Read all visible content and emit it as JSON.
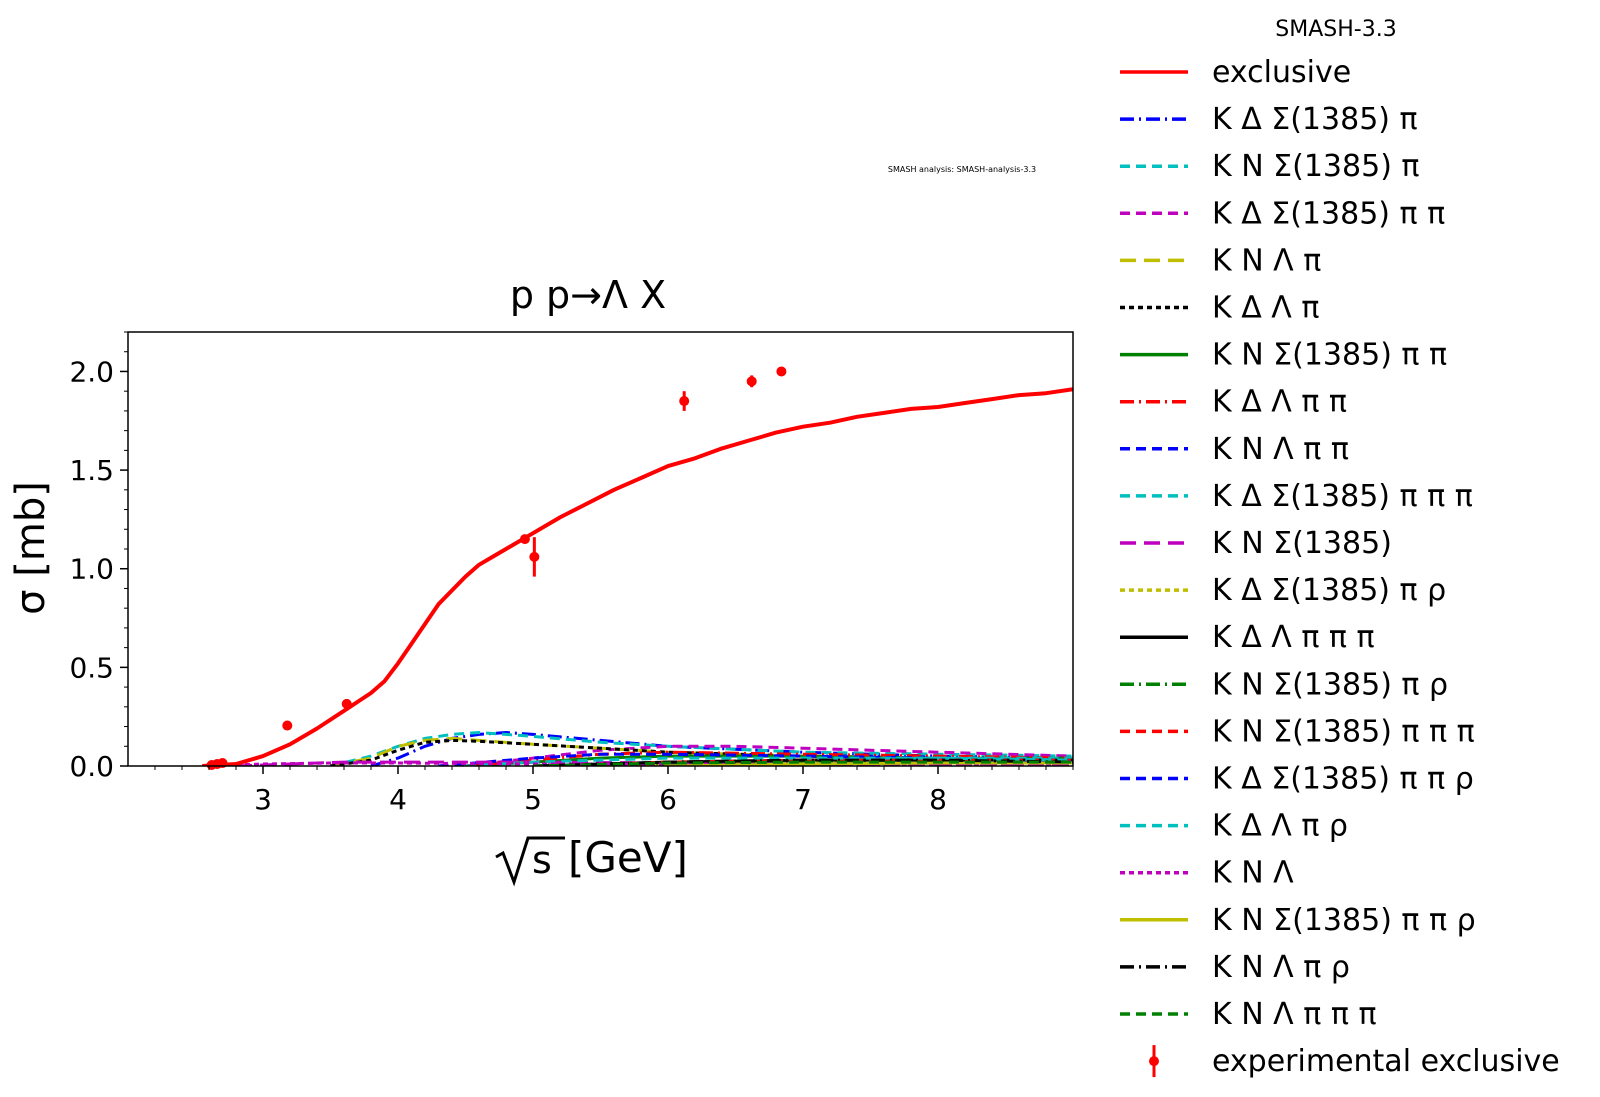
{
  "chart_data": {
    "type": "line",
    "title": "p p→Λ X",
    "xlabel": "[GeV]",
    "xlabel_sqrt": "s",
    "ylabel": "σ [mb]",
    "watermark": "SMASH analysis: SMASH-analysis-3.3",
    "legend_title": "SMASH-3.3",
    "legend_position": "outside-right",
    "xlim": [
      2.0,
      9.0
    ],
    "ylim": [
      0.0,
      2.2
    ],
    "xticks": [
      3,
      4,
      5,
      6,
      7,
      8
    ],
    "xtick_labels": [
      "3",
      "4",
      "5",
      "6",
      "7",
      "8"
    ],
    "yticks": [
      0.0,
      0.5,
      1.0,
      1.5,
      2.0
    ],
    "ytick_labels": [
      "0.0",
      "0.5",
      "1.0",
      "1.5",
      "2.0"
    ],
    "series": [
      {
        "name": "exclusive",
        "color": "#ff0000",
        "style": "solid",
        "x": [
          2.55,
          2.8,
          3.0,
          3.2,
          3.4,
          3.6,
          3.8,
          3.9,
          4.0,
          4.1,
          4.2,
          4.3,
          4.4,
          4.5,
          4.6,
          4.7,
          4.8,
          4.9,
          5.0,
          5.2,
          5.4,
          5.6,
          5.8,
          6.0,
          6.2,
          6.4,
          6.6,
          6.8,
          7.0,
          7.2,
          7.4,
          7.6,
          7.8,
          8.0,
          8.2,
          8.4,
          8.6,
          8.8,
          9.0
        ],
        "y": [
          0.0,
          0.01,
          0.05,
          0.11,
          0.19,
          0.28,
          0.37,
          0.43,
          0.52,
          0.62,
          0.72,
          0.82,
          0.89,
          0.96,
          1.02,
          1.06,
          1.1,
          1.14,
          1.18,
          1.26,
          1.33,
          1.4,
          1.46,
          1.52,
          1.56,
          1.61,
          1.65,
          1.69,
          1.72,
          1.74,
          1.77,
          1.79,
          1.81,
          1.82,
          1.84,
          1.86,
          1.88,
          1.89,
          1.91
        ]
      },
      {
        "name": "K Δ Σ(1385) π",
        "color": "#0000ff",
        "style": "dashdot",
        "x": [
          3.8,
          4.0,
          4.2,
          4.4,
          4.6,
          4.8,
          5.0,
          5.5,
          6.0,
          7.0,
          8.0,
          9.0
        ],
        "y": [
          0.0,
          0.04,
          0.1,
          0.14,
          0.16,
          0.17,
          0.16,
          0.13,
          0.1,
          0.07,
          0.05,
          0.04
        ]
      },
      {
        "name": "K N Σ(1385) π",
        "color": "#00bfbf",
        "style": "dash",
        "x": [
          3.5,
          3.8,
          4.0,
          4.2,
          4.4,
          4.6,
          4.8,
          5.0,
          5.5,
          6.0,
          7.0,
          8.0,
          9.0
        ],
        "y": [
          0.0,
          0.05,
          0.1,
          0.14,
          0.16,
          0.17,
          0.16,
          0.15,
          0.12,
          0.1,
          0.07,
          0.06,
          0.05
        ]
      },
      {
        "name": "K Δ Σ(1385) π π",
        "color": "#bf00bf",
        "style": "dash",
        "x": [
          4.5,
          5.0,
          5.5,
          6.0,
          6.5,
          7.0,
          7.5,
          8.0,
          9.0
        ],
        "y": [
          0.0,
          0.04,
          0.08,
          0.1,
          0.1,
          0.09,
          0.08,
          0.07,
          0.05
        ]
      },
      {
        "name": "K N Λ π",
        "color": "#bfbf00",
        "style": "longdash",
        "x": [
          3.5,
          3.8,
          4.0,
          4.2,
          4.4,
          4.6,
          5.0,
          5.5,
          6.0,
          7.0,
          8.0,
          9.0
        ],
        "y": [
          0.0,
          0.04,
          0.1,
          0.13,
          0.14,
          0.13,
          0.11,
          0.09,
          0.07,
          0.05,
          0.04,
          0.03
        ]
      },
      {
        "name": "K Δ Λ π",
        "color": "#000000",
        "style": "dotted",
        "x": [
          3.5,
          3.8,
          4.0,
          4.2,
          4.4,
          4.6,
          5.0,
          5.5,
          6.0,
          7.0,
          8.0,
          9.0
        ],
        "y": [
          0.0,
          0.03,
          0.08,
          0.12,
          0.13,
          0.125,
          0.11,
          0.09,
          0.07,
          0.05,
          0.04,
          0.03
        ]
      },
      {
        "name": "K N Σ(1385) π π",
        "color": "#008000",
        "style": "solid",
        "x": [
          4.5,
          5.0,
          5.5,
          6.0,
          7.0,
          8.0,
          9.0
        ],
        "y": [
          0.0,
          0.02,
          0.04,
          0.05,
          0.05,
          0.04,
          0.04
        ]
      },
      {
        "name": "K Δ Λ π π",
        "color": "#ff0000",
        "style": "dashdot",
        "x": [
          4.5,
          5.0,
          5.5,
          6.0,
          7.0,
          8.0,
          9.0
        ],
        "y": [
          0.0,
          0.03,
          0.06,
          0.07,
          0.06,
          0.05,
          0.04
        ]
      },
      {
        "name": "K N Λ π π",
        "color": "#0000ff",
        "style": "dash",
        "x": [
          4.3,
          5.0,
          5.5,
          6.0,
          7.0,
          8.0,
          9.0
        ],
        "y": [
          0.0,
          0.04,
          0.06,
          0.06,
          0.05,
          0.04,
          0.03
        ]
      },
      {
        "name": "K Δ Σ(1385) π π π",
        "color": "#00bfbf",
        "style": "dash",
        "x": [
          5.5,
          6.0,
          7.0,
          8.0,
          9.0
        ],
        "y": [
          0.0,
          0.01,
          0.03,
          0.04,
          0.04
        ]
      },
      {
        "name": "K N Σ(1385)",
        "color": "#bf00bf",
        "style": "longdash",
        "x": [
          2.8,
          3.2,
          3.6,
          4.0,
          4.5,
          5.0,
          6.0,
          7.0,
          8.0,
          9.0
        ],
        "y": [
          0.0,
          0.01,
          0.02,
          0.02,
          0.02,
          0.02,
          0.015,
          0.01,
          0.01,
          0.01
        ]
      },
      {
        "name": "K Δ Σ(1385) π ρ",
        "color": "#bfbf00",
        "style": "dotted",
        "x": [
          5.5,
          6.0,
          7.0,
          8.0,
          9.0
        ],
        "y": [
          0.0,
          0.01,
          0.02,
          0.02,
          0.02
        ]
      },
      {
        "name": "K Δ Λ π π π",
        "color": "#000000",
        "style": "solid",
        "x": [
          5.0,
          6.0,
          7.0,
          8.0,
          9.0
        ],
        "y": [
          0.0,
          0.02,
          0.03,
          0.03,
          0.03
        ]
      },
      {
        "name": "K N Σ(1385) π ρ",
        "color": "#008000",
        "style": "dashdot",
        "x": [
          5.0,
          6.0,
          7.0,
          8.0,
          9.0
        ],
        "y": [
          0.0,
          0.015,
          0.02,
          0.02,
          0.02
        ]
      },
      {
        "name": "K N Σ(1385) π π π",
        "color": "#ff0000",
        "style": "dash",
        "x": [
          5.0,
          6.0,
          7.0,
          8.0,
          9.0
        ],
        "y": [
          0.0,
          0.02,
          0.03,
          0.03,
          0.03
        ]
      },
      {
        "name": "K Δ Σ(1385) π π ρ",
        "color": "#0000ff",
        "style": "dash",
        "x": [
          6.0,
          7.0,
          8.0,
          9.0
        ],
        "y": [
          0.0,
          0.01,
          0.015,
          0.02
        ]
      },
      {
        "name": "K Δ Λ π ρ",
        "color": "#00bfbf",
        "style": "dash",
        "x": [
          4.5,
          5.0,
          6.0,
          7.0,
          8.0,
          9.0
        ],
        "y": [
          0.0,
          0.02,
          0.04,
          0.04,
          0.04,
          0.03
        ]
      },
      {
        "name": "K N Λ",
        "color": "#bf00bf",
        "style": "dotted",
        "x": [
          2.6,
          3.0,
          3.5,
          4.0,
          5.0,
          6.0,
          7.0,
          8.0,
          9.0
        ],
        "y": [
          0.0,
          0.01,
          0.015,
          0.015,
          0.01,
          0.01,
          0.01,
          0.005,
          0.005
        ]
      },
      {
        "name": "K N Σ(1385) π π ρ",
        "color": "#bfbf00",
        "style": "solid",
        "x": [
          6.0,
          7.0,
          8.0,
          9.0
        ],
        "y": [
          0.0,
          0.01,
          0.015,
          0.015
        ]
      },
      {
        "name": "K N Λ π ρ",
        "color": "#000000",
        "style": "dashdot",
        "x": [
          5.0,
          6.0,
          7.0,
          8.0,
          9.0
        ],
        "y": [
          0.0,
          0.02,
          0.03,
          0.03,
          0.02
        ]
      },
      {
        "name": "K N Λ π π π",
        "color": "#008000",
        "style": "dash",
        "x": [
          5.0,
          6.0,
          7.0,
          8.0,
          9.0
        ],
        "y": [
          0.0,
          0.015,
          0.02,
          0.02,
          0.02
        ]
      }
    ],
    "experimental": {
      "name": "experimental exclusive",
      "color": "#ff0000",
      "points": [
        {
          "x": 2.62,
          "y": 0.005,
          "err": 0.0
        },
        {
          "x": 2.66,
          "y": 0.01,
          "err": 0.0
        },
        {
          "x": 2.7,
          "y": 0.015,
          "err": 0.0
        },
        {
          "x": 3.18,
          "y": 0.205,
          "err": 0.0
        },
        {
          "x": 3.62,
          "y": 0.315,
          "err": 0.0
        },
        {
          "x": 4.94,
          "y": 1.15,
          "err": 0.0
        },
        {
          "x": 5.01,
          "y": 1.06,
          "err": 0.1
        },
        {
          "x": 6.12,
          "y": 1.85,
          "err": 0.05
        },
        {
          "x": 6.62,
          "y": 1.95,
          "err": 0.03
        },
        {
          "x": 6.84,
          "y": 2.0,
          "err": 0.0
        }
      ]
    }
  }
}
